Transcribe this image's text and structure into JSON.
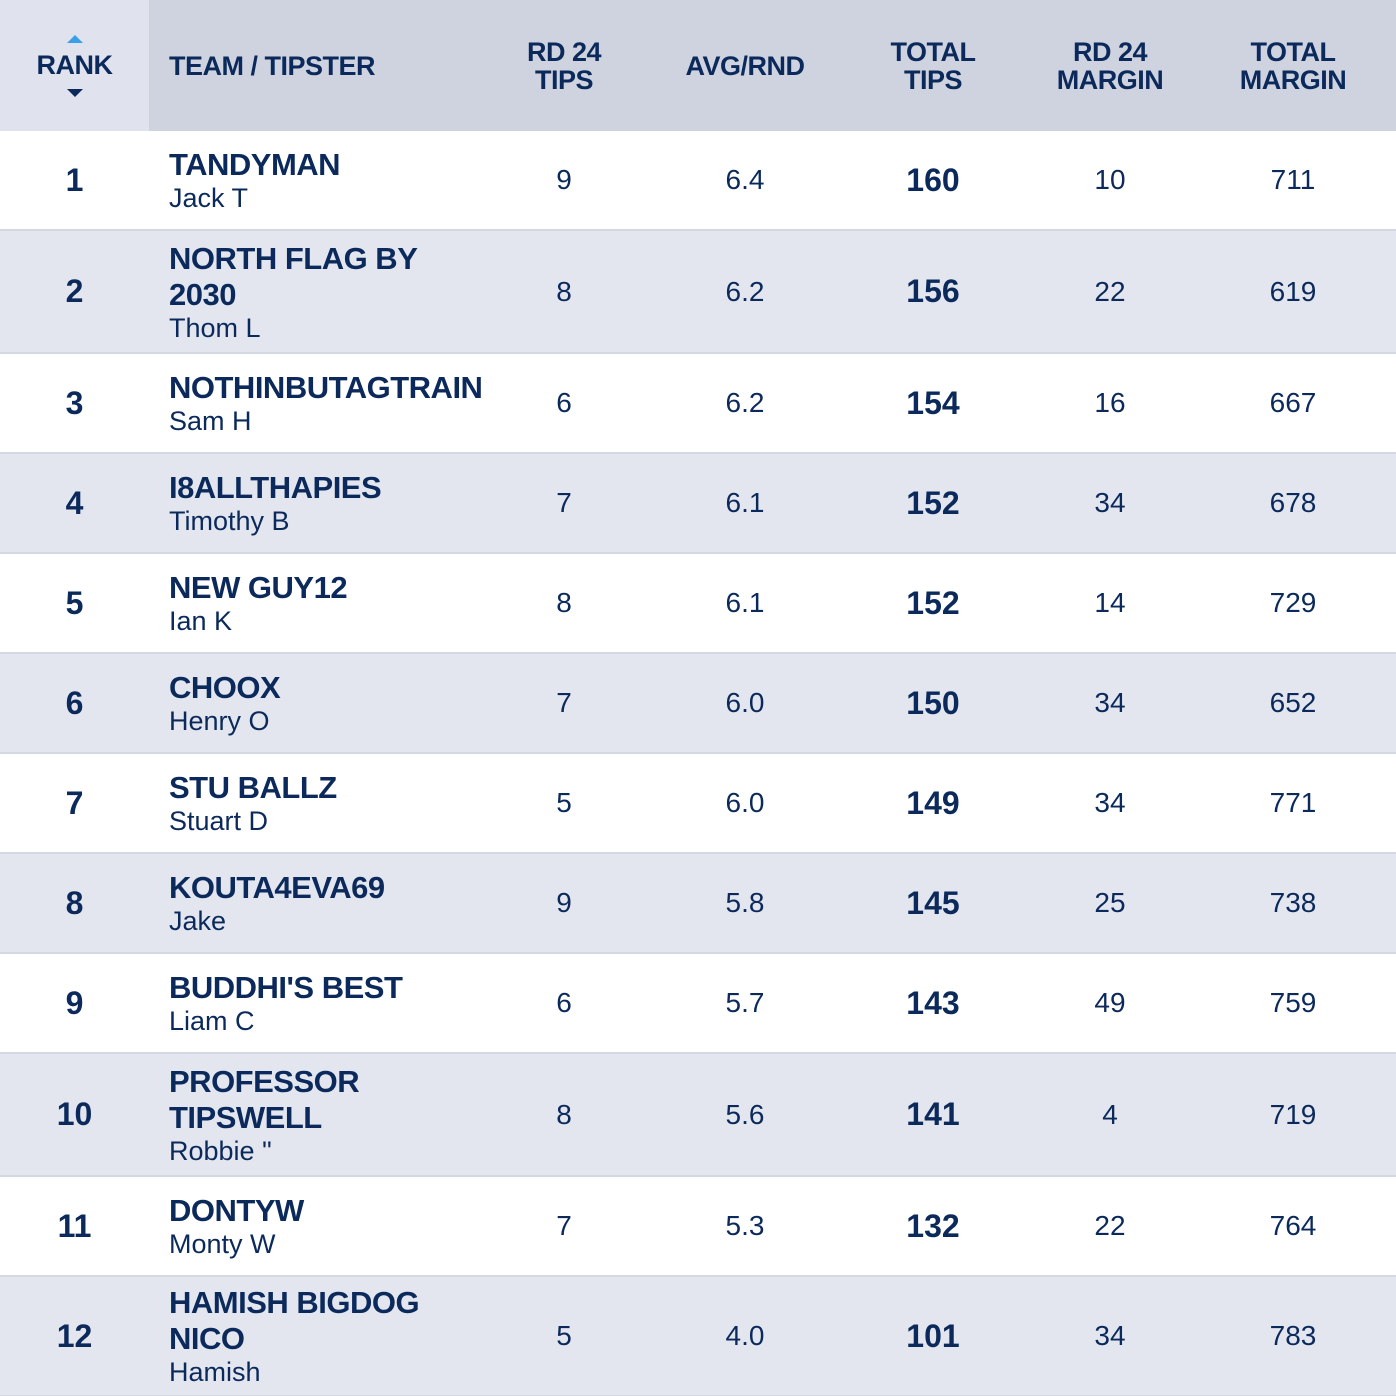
{
  "columns": {
    "rank": "RANK",
    "team": "TEAM / TIPSTER",
    "rd_tips": "RD 24 TIPS",
    "avg": "AVG/RND",
    "total_tips": "TOTAL TIPS",
    "rd_margin": "RD 24 MARGIN",
    "total_margin": "TOTAL MARGIN"
  },
  "sort": {
    "column": "rank",
    "up_icon": "caret-up-icon",
    "down_icon": "caret-down-icon",
    "up_color": "#3aa0e6"
  },
  "rows": [
    {
      "rank": "1",
      "team": "TANDYMAN",
      "tipster": "Jack T",
      "rd_tips": "9",
      "avg": "6.4",
      "total_tips": "160",
      "rd_margin": "10",
      "total_margin": "711"
    },
    {
      "rank": "2",
      "team": "NORTH FLAG BY 2030",
      "tipster": "Thom L",
      "rd_tips": "8",
      "avg": "6.2",
      "total_tips": "156",
      "rd_margin": "22",
      "total_margin": "619"
    },
    {
      "rank": "3",
      "team": "NOTHINBUTAGTRAIN",
      "tipster": "Sam H",
      "rd_tips": "6",
      "avg": "6.2",
      "total_tips": "154",
      "rd_margin": "16",
      "total_margin": "667"
    },
    {
      "rank": "4",
      "team": "I8ALLTHAPIES",
      "tipster": "Timothy B",
      "rd_tips": "7",
      "avg": "6.1",
      "total_tips": "152",
      "rd_margin": "34",
      "total_margin": "678"
    },
    {
      "rank": "5",
      "team": "NEW GUY12",
      "tipster": "Ian K",
      "rd_tips": "8",
      "avg": "6.1",
      "total_tips": "152",
      "rd_margin": "14",
      "total_margin": "729"
    },
    {
      "rank": "6",
      "team": "CHOOX",
      "tipster": "Henry O",
      "rd_tips": "7",
      "avg": "6.0",
      "total_tips": "150",
      "rd_margin": "34",
      "total_margin": "652"
    },
    {
      "rank": "7",
      "team": "STU BALLZ",
      "tipster": "Stuart D",
      "rd_tips": "5",
      "avg": "6.0",
      "total_tips": "149",
      "rd_margin": "34",
      "total_margin": "771"
    },
    {
      "rank": "8",
      "team": "KOUTA4EVA69",
      "tipster": "Jake",
      "rd_tips": "9",
      "avg": "5.8",
      "total_tips": "145",
      "rd_margin": "25",
      "total_margin": "738"
    },
    {
      "rank": "9",
      "team": "BUDDHI'S BEST",
      "tipster": "Liam C",
      "rd_tips": "6",
      "avg": "5.7",
      "total_tips": "143",
      "rd_margin": "49",
      "total_margin": "759"
    },
    {
      "rank": "10",
      "team": "PROFESSOR TIPSWELL",
      "tipster": "Robbie \"",
      "rd_tips": "8",
      "avg": "5.6",
      "total_tips": "141",
      "rd_margin": "4",
      "total_margin": "719"
    },
    {
      "rank": "11",
      "team": "DONTYW",
      "tipster": "Monty W",
      "rd_tips": "7",
      "avg": "5.3",
      "total_tips": "132",
      "rd_margin": "22",
      "total_margin": "764"
    },
    {
      "rank": "12",
      "team": "HAMISH BIGDOG NICO",
      "tipster": "Hamish",
      "rd_tips": "5",
      "avg": "4.0",
      "total_tips": "101",
      "rd_margin": "34",
      "total_margin": "783"
    }
  ]
}
